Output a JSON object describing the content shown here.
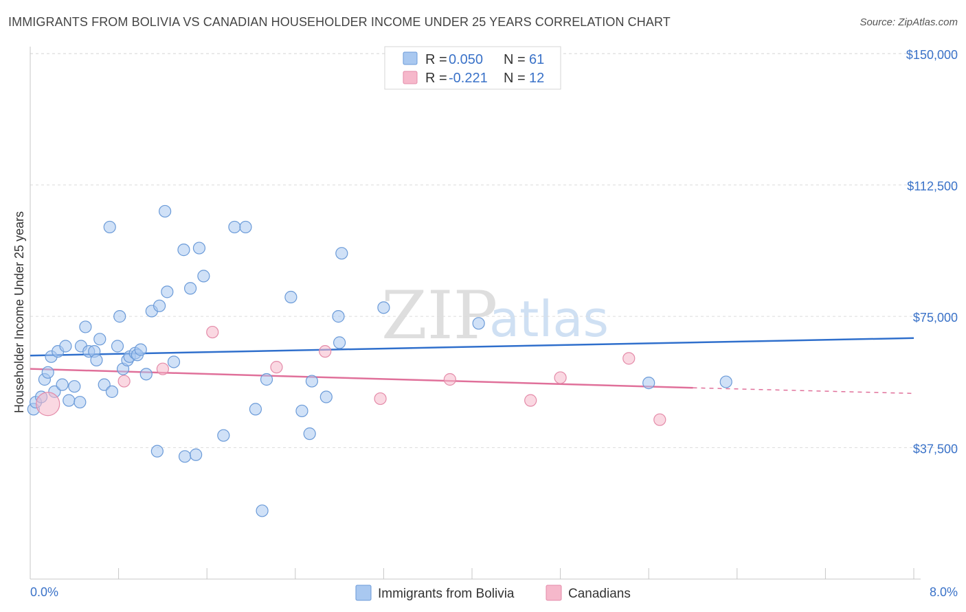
{
  "title": "IMMIGRANTS FROM BOLIVIA VS CANADIAN HOUSEHOLDER INCOME UNDER 25 YEARS CORRELATION CHART",
  "source": "Source: ZipAtlas.com",
  "watermark": {
    "zip": "ZIP",
    "atlas": "atlas"
  },
  "legend": {
    "rows": [
      {
        "r_label": "R =",
        "r_value": "0.050",
        "n_label": "N =",
        "n_value": "61",
        "color": "#a9c8f0"
      },
      {
        "r_label": "R =",
        "r_value": "-0.221",
        "n_label": "N =",
        "n_value": "12",
        "color": "#f6b8cb"
      }
    ]
  },
  "bottom_legend": [
    "Immigrants from Bolivia",
    "Canadians"
  ],
  "chart_data": {
    "type": "scatter",
    "title": "IMMIGRANTS FROM BOLIVIA VS CANADIAN HOUSEHOLDER INCOME UNDER 25 YEARS CORRELATION CHART",
    "xlabel": "",
    "ylabel": "Householder Income Under 25 years",
    "xlim": [
      0.0,
      8.0
    ],
    "ylim": [
      0,
      152000
    ],
    "x_tick_labels": [
      "0.0%",
      "8.0%"
    ],
    "y_ticks": [
      37500,
      75000,
      112500,
      150000
    ],
    "y_tick_labels": [
      "$37,500",
      "$75,000",
      "$112,500",
      "$150,000"
    ],
    "grid": "horizontal dashed",
    "colors": {
      "bolivia": "#a9c8f0",
      "bolivia_line": "#2f6fcc",
      "canadians": "#f6b8cb",
      "canadians_line": "#e0709a"
    },
    "series": [
      {
        "name": "Immigrants from Bolivia",
        "r": 0.05,
        "n": 61,
        "trend": {
          "x0": 0.0,
          "y0": 63800,
          "x1": 8.0,
          "y1": 68800
        },
        "points": [
          [
            0.03,
            48500
          ],
          [
            0.05,
            50500
          ],
          [
            0.1,
            52000
          ],
          [
            0.13,
            57000
          ],
          [
            0.16,
            59000
          ],
          [
            0.19,
            63500
          ],
          [
            0.22,
            53500
          ],
          [
            0.25,
            65000
          ],
          [
            0.29,
            55500
          ],
          [
            0.32,
            66500
          ],
          [
            0.35,
            51000
          ],
          [
            0.4,
            55000
          ],
          [
            0.45,
            50500
          ],
          [
            0.46,
            66500
          ],
          [
            0.5,
            72000
          ],
          [
            0.53,
            65000
          ],
          [
            0.58,
            65000
          ],
          [
            0.6,
            62500
          ],
          [
            0.63,
            68500
          ],
          [
            0.67,
            55500
          ],
          [
            0.72,
            100500
          ],
          [
            0.74,
            53500
          ],
          [
            0.79,
            66500
          ],
          [
            0.81,
            75000
          ],
          [
            0.84,
            60000
          ],
          [
            0.88,
            62500
          ],
          [
            0.9,
            63500
          ],
          [
            0.95,
            64500
          ],
          [
            0.97,
            64000
          ],
          [
            1.0,
            65500
          ],
          [
            1.05,
            58500
          ],
          [
            1.1,
            76500
          ],
          [
            1.15,
            36500
          ],
          [
            1.17,
            78000
          ],
          [
            1.22,
            105000
          ],
          [
            1.24,
            82000
          ],
          [
            1.3,
            62000
          ],
          [
            1.39,
            94000
          ],
          [
            1.4,
            35000
          ],
          [
            1.45,
            83000
          ],
          [
            1.5,
            35500
          ],
          [
            1.53,
            94500
          ],
          [
            1.57,
            86500
          ],
          [
            1.75,
            41000
          ],
          [
            1.85,
            100500
          ],
          [
            1.95,
            100500
          ],
          [
            2.04,
            48500
          ],
          [
            2.1,
            19500
          ],
          [
            2.14,
            57000
          ],
          [
            2.36,
            80500
          ],
          [
            2.46,
            48000
          ],
          [
            2.53,
            41500
          ],
          [
            2.55,
            56500
          ],
          [
            2.68,
            52000
          ],
          [
            2.79,
            75000
          ],
          [
            2.8,
            67500
          ],
          [
            2.82,
            93000
          ],
          [
            3.2,
            77500
          ],
          [
            4.06,
            73000
          ],
          [
            5.6,
            56000
          ],
          [
            6.3,
            56300
          ]
        ]
      },
      {
        "name": "Canadians",
        "r": -0.221,
        "n": 12,
        "trend": {
          "x0": 0.0,
          "y0": 60000,
          "x1": 6.0,
          "y1": 54600,
          "dashed_to_x": 8.0,
          "dashed_to_y": 53000
        },
        "points": [
          [
            0.16,
            50000
          ],
          [
            0.85,
            56500
          ],
          [
            1.2,
            60000
          ],
          [
            1.65,
            70500
          ],
          [
            2.23,
            60500
          ],
          [
            2.67,
            65000
          ],
          [
            3.17,
            51500
          ],
          [
            3.8,
            57000
          ],
          [
            4.53,
            51000
          ],
          [
            4.8,
            57500
          ],
          [
            5.42,
            63000
          ],
          [
            5.7,
            45500
          ]
        ]
      }
    ]
  }
}
